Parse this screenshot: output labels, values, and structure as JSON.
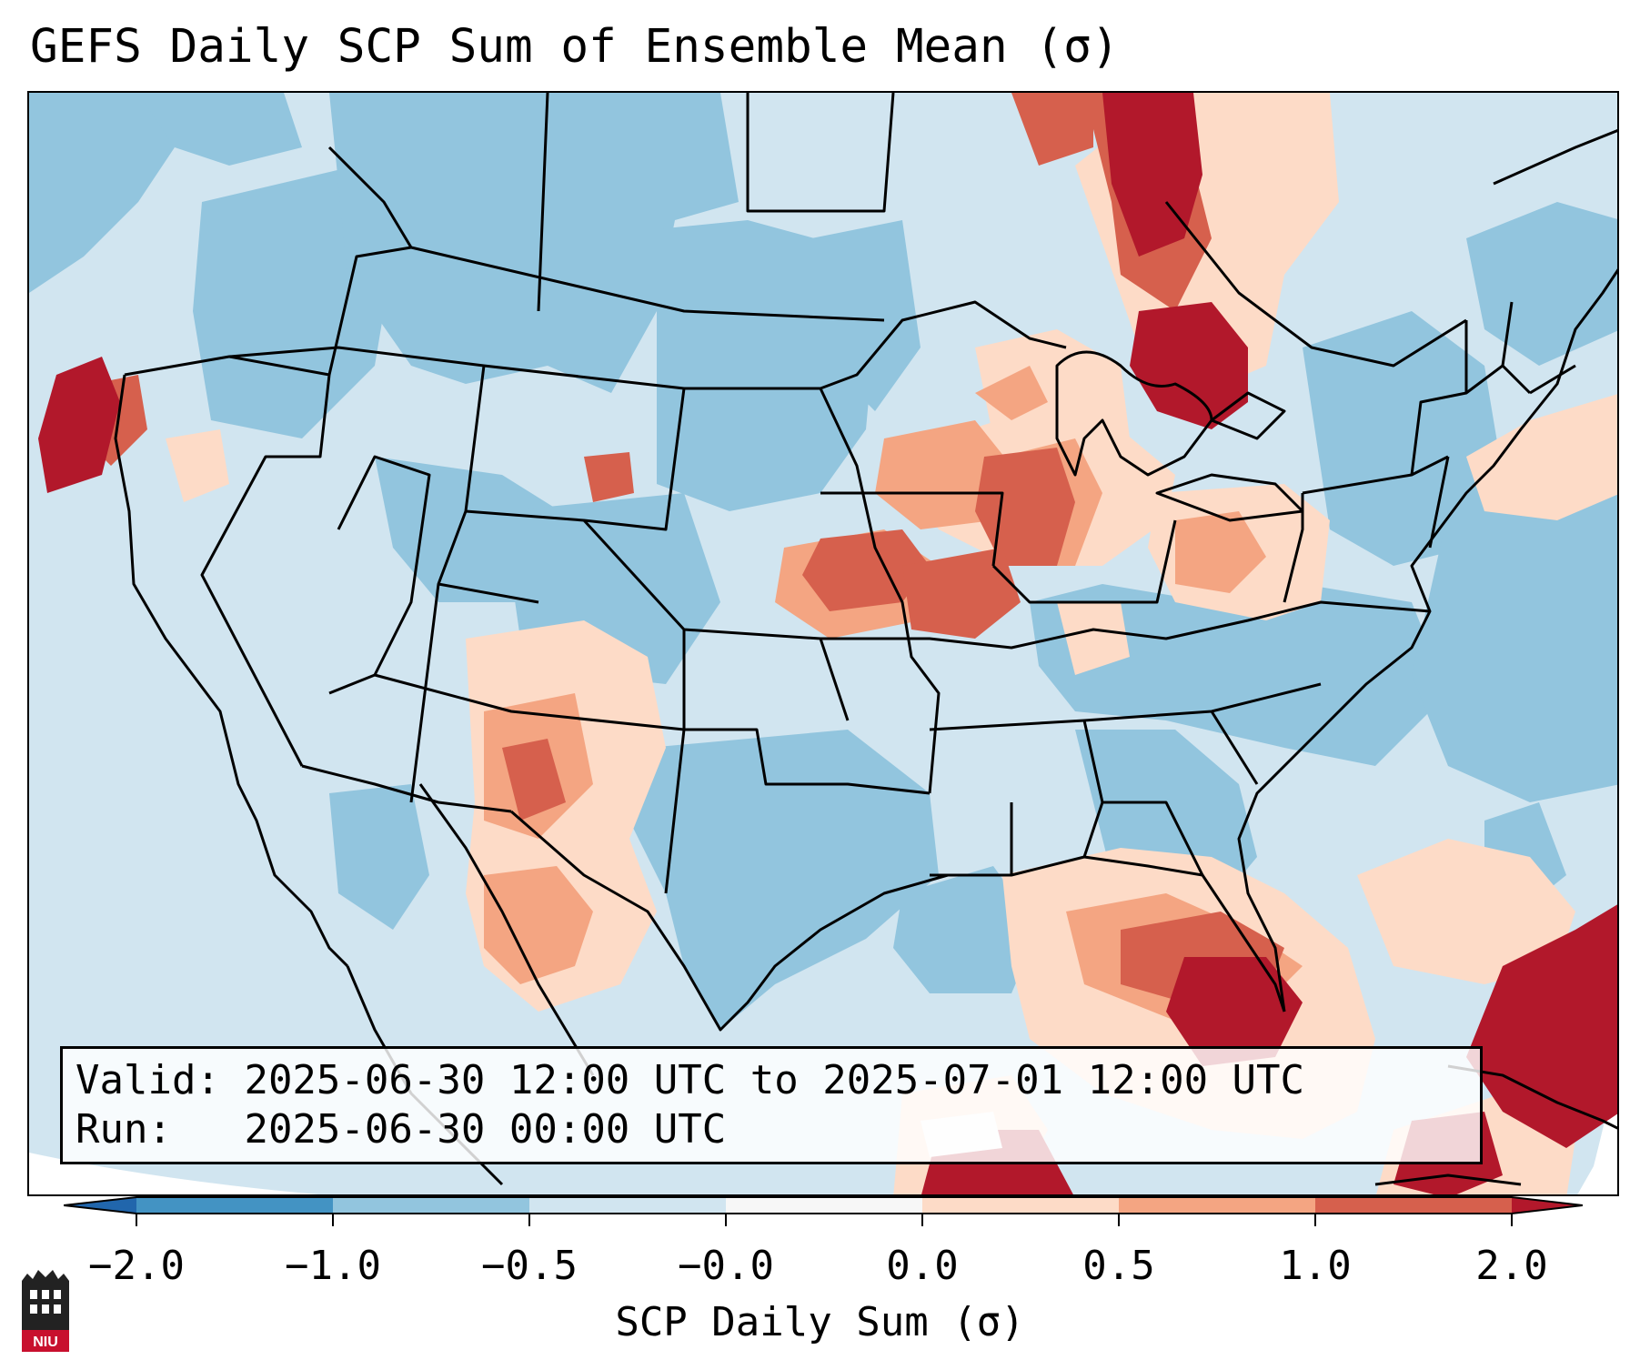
{
  "title": "GEFS Daily SCP Sum of Ensemble Mean (σ)",
  "info": {
    "valid_label": "Valid:",
    "valid_text": "2025-06-30 12:00 UTC to 2025-07-01 12:00 UTC",
    "run_label": "Run:",
    "run_text": "2025-06-30 00:00 UTC"
  },
  "colorbar": {
    "label": "SCP Daily Sum (σ)",
    "bounds": [
      "−2.0",
      "−1.0",
      "−0.5",
      "−0.0",
      "0.0",
      "0.5",
      "1.0",
      "2.0"
    ],
    "colors": [
      "#4393c3",
      "#92c5de",
      "#d1e5f0",
      "#f7f7f7",
      "#fddbc7",
      "#f4a582",
      "#d6604d"
    ],
    "under_color": "#2166ac",
    "over_color": "#b2182b"
  },
  "logo": {
    "text": "NIU"
  },
  "map": {
    "background_color": "#d1e5f0",
    "state_line_color": "#000000",
    "regions": [
      {
        "name": "pacific-northwest",
        "level": "light-blue"
      },
      {
        "name": "northern-rockies",
        "level": "medium-blue"
      },
      {
        "name": "northern-plains",
        "level": "medium-blue"
      },
      {
        "name": "upper-midwest",
        "level": "light-red"
      },
      {
        "name": "great-lakes",
        "level": "dark-red"
      },
      {
        "name": "central-plains",
        "level": "red"
      },
      {
        "name": "southwest",
        "level": "light-red"
      },
      {
        "name": "texas",
        "level": "medium-blue"
      },
      {
        "name": "southeast",
        "level": "medium-blue"
      },
      {
        "name": "gulf-of-mexico",
        "level": "dark-red"
      },
      {
        "name": "western-atlantic",
        "level": "dark-red"
      },
      {
        "name": "california-coast",
        "level": "dark-red"
      },
      {
        "name": "quebec",
        "level": "dark-red"
      }
    ]
  }
}
